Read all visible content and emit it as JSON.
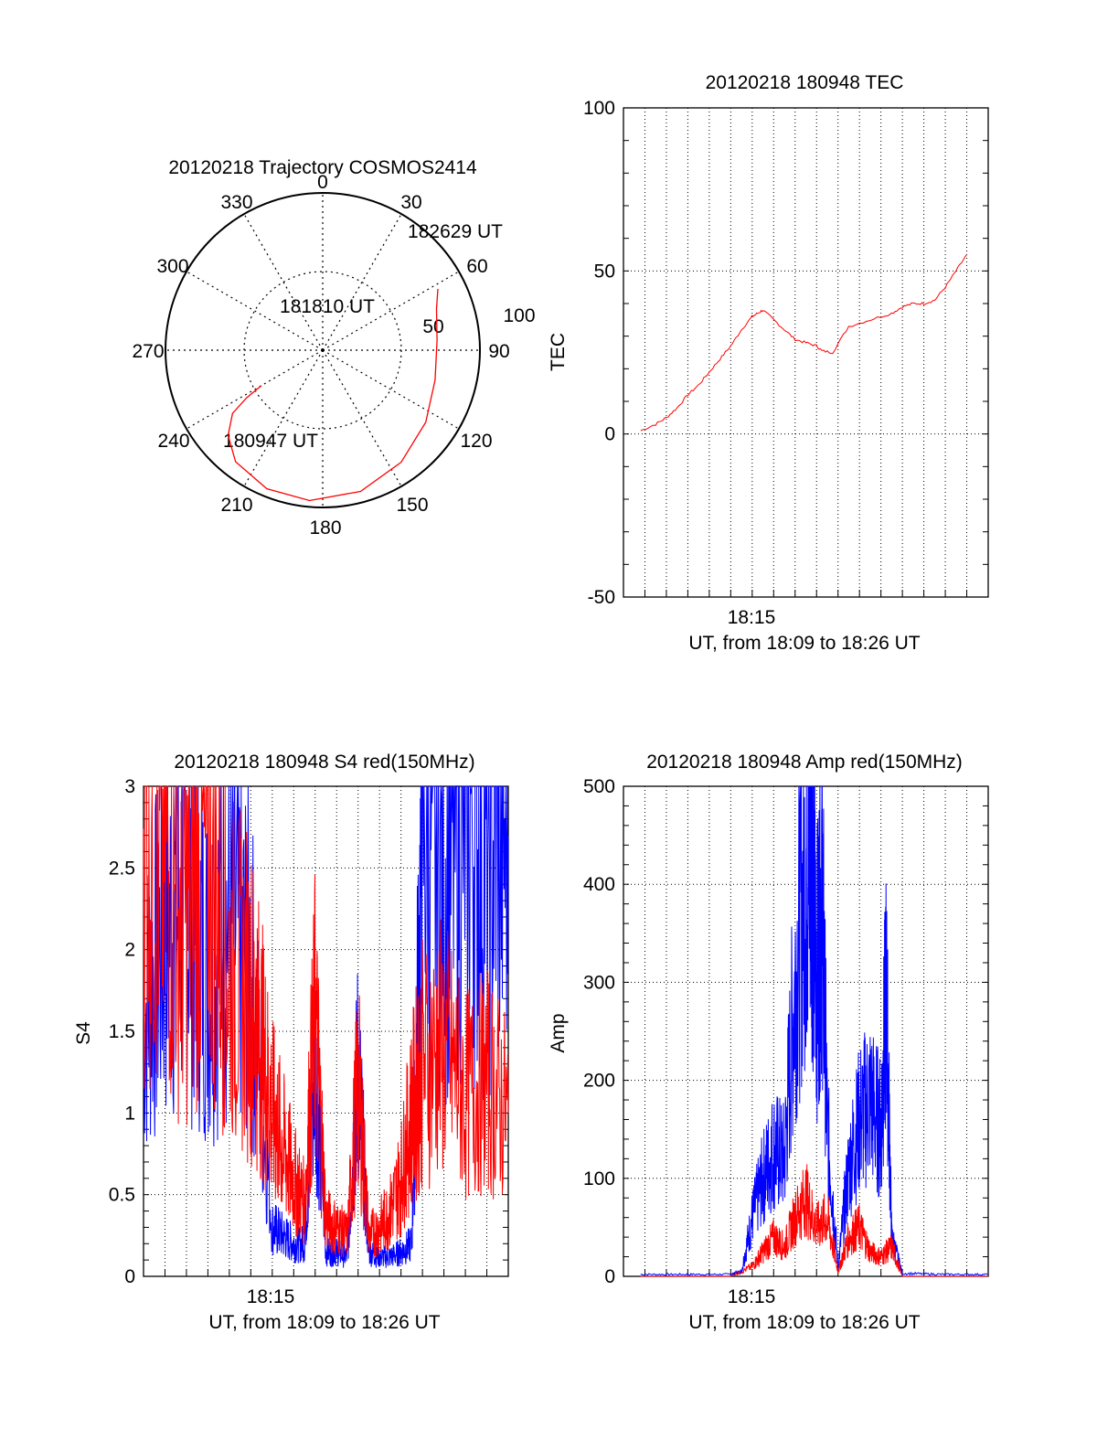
{
  "chart_data": [
    {
      "id": "polar",
      "type": "polar",
      "title": "20120218 Trajectory COSMOS2414",
      "azimuth_labels": [
        "0",
        "30",
        "60",
        "90",
        "120",
        "150",
        "180",
        "210",
        "240",
        "270",
        "300",
        "330"
      ],
      "elevation_ring_labels": [
        "50",
        "100"
      ],
      "point_labels": [
        "182629 UT",
        "181810 UT",
        "180947 UT"
      ],
      "trajectory": {
        "color": "#ff0000",
        "points": [
          [
            45,
            240
          ],
          [
            57,
            238
          ],
          [
            70,
            235
          ],
          [
            81,
            228
          ],
          [
            90,
            218
          ],
          [
            95,
            202
          ],
          [
            96,
            185
          ],
          [
            93,
            165
          ],
          [
            87,
            145
          ],
          [
            80,
            125
          ],
          [
            74,
            105
          ],
          [
            73,
            85
          ],
          [
            77,
            70
          ],
          [
            83,
            62
          ]
        ]
      }
    },
    {
      "id": "tec",
      "type": "line",
      "title": "20120218 180948 TEC",
      "xlabel": "UT, from 18:09 to 18:26 UT",
      "ylabel": "TEC",
      "xtick_labels": [
        "18:15"
      ],
      "ytick_labels": [
        "-50",
        "0",
        "50",
        "100"
      ],
      "ylim": [
        -50,
        100
      ],
      "grid": true,
      "series": [
        {
          "color": "#ff0000",
          "x": [
            "18:09:48",
            "18:10:30",
            "18:11:00",
            "18:11:30",
            "18:12:00",
            "18:12:30",
            "18:13:00",
            "18:13:30",
            "18:14:00",
            "18:14:30",
            "18:15:00",
            "18:15:15",
            "18:15:30",
            "18:16:00",
            "18:16:30",
            "18:17:00",
            "18:17:30",
            "18:18:00",
            "18:18:15",
            "18:18:45",
            "18:19:30",
            "18:20:30",
            "18:21:30",
            "18:22:00",
            "18:22:30",
            "18:23:00",
            "18:23:30",
            "18:24:00",
            "18:24:30",
            "18:25:00"
          ],
          "values": [
            1,
            3,
            5,
            8,
            12,
            15,
            19,
            23,
            27,
            32,
            36,
            37,
            38,
            35,
            32,
            29,
            28,
            27,
            25.5,
            25,
            33,
            35,
            37,
            39,
            40,
            40,
            41,
            45,
            50,
            55
          ]
        }
      ]
    },
    {
      "id": "s4",
      "type": "line",
      "title": "20120218 180948 S4 red(150MHz)",
      "xlabel": "UT, from 18:09 to 18:26 UT",
      "ylabel": "S4",
      "xtick_labels": [
        "18:15"
      ],
      "ytick_labels": [
        "0",
        "0.5",
        "1",
        "1.5",
        "2",
        "2.5",
        "3"
      ],
      "ylim": [
        0,
        3
      ],
      "grid": true,
      "series": [
        {
          "color": "#0000ff",
          "x": [
            "18:09:00",
            "18:10:00",
            "18:11:00",
            "18:12:00",
            "18:13:00",
            "18:14:00",
            "18:15:00",
            "18:15:30",
            "18:16:00",
            "18:16:30",
            "18:17:00",
            "18:17:30",
            "18:18:00",
            "18:18:30",
            "18:19:00",
            "18:19:30",
            "18:20:00",
            "18:20:30",
            "18:21:00",
            "18:21:30",
            "18:22:00",
            "18:23:00",
            "18:24:00",
            "18:25:00",
            "18:26:00"
          ],
          "values": [
            1.6,
            2.1,
            2.3,
            1.9,
            2.2,
            1.9,
            0.3,
            0.25,
            0.2,
            0.2,
            1.4,
            0.15,
            0.15,
            0.12,
            1.3,
            0.15,
            0.12,
            0.12,
            0.15,
            0.2,
            2.8,
            2.5,
            2.9,
            2.6,
            2.7
          ]
        },
        {
          "color": "#ff0000",
          "x": [
            "18:09:00",
            "18:10:00",
            "18:11:00",
            "18:12:00",
            "18:13:00",
            "18:14:00",
            "18:14:30",
            "18:15:00",
            "18:15:30",
            "18:16:00",
            "18:16:30",
            "18:17:00",
            "18:17:30",
            "18:18:00",
            "18:18:30",
            "18:19:00",
            "18:19:30",
            "18:20:00",
            "18:20:30",
            "18:21:00",
            "18:21:30",
            "18:22:00",
            "18:23:00",
            "18:24:00",
            "18:25:00",
            "18:26:00"
          ],
          "values": [
            2.8,
            2.5,
            2.2,
            2.6,
            1.9,
            1.7,
            1.4,
            1.0,
            0.8,
            0.6,
            0.45,
            1.6,
            0.35,
            0.3,
            0.25,
            1.2,
            0.25,
            0.3,
            0.4,
            0.6,
            1.0,
            1.3,
            1.4,
            1.1,
            1.2,
            1.0
          ]
        }
      ]
    },
    {
      "id": "amp",
      "type": "line",
      "title": "20120218 180948 Amp red(150MHz)",
      "xlabel": "UT, from 18:09 to 18:26 UT",
      "ylabel": "Amp",
      "xtick_labels": [
        "18:15"
      ],
      "ytick_labels": [
        "0",
        "100",
        "200",
        "300",
        "400",
        "500"
      ],
      "ylim": [
        0,
        500
      ],
      "grid": true,
      "series": [
        {
          "color": "#0000ff",
          "x": [
            "18:09:48",
            "18:12:00",
            "18:14:00",
            "18:14:30",
            "18:15:00",
            "18:15:30",
            "18:16:00",
            "18:16:30",
            "18:17:00",
            "18:17:30",
            "18:17:45",
            "18:18:00",
            "18:18:15",
            "18:18:30",
            "18:19:00",
            "18:19:30",
            "18:20:00",
            "18:20:30",
            "18:21:00",
            "18:21:15",
            "18:21:30",
            "18:22:00",
            "18:24:00",
            "18:26:00"
          ],
          "values": [
            2,
            2,
            2,
            5,
            60,
            100,
            130,
            120,
            300,
            420,
            460,
            300,
            400,
            150,
            10,
            110,
            160,
            180,
            150,
            290,
            40,
            3,
            2,
            2
          ]
        },
        {
          "color": "#ff0000",
          "x": [
            "18:09:48",
            "18:14:00",
            "18:15:00",
            "18:15:30",
            "18:16:00",
            "18:16:30",
            "18:17:00",
            "18:17:30",
            "18:18:00",
            "18:18:30",
            "18:19:00",
            "18:19:30",
            "18:20:00",
            "18:20:30",
            "18:21:00",
            "18:21:30",
            "18:22:00",
            "18:26:00"
          ],
          "values": [
            0,
            0,
            10,
            25,
            40,
            30,
            60,
            80,
            50,
            60,
            5,
            40,
            50,
            25,
            20,
            30,
            0,
            0
          ]
        }
      ]
    }
  ]
}
